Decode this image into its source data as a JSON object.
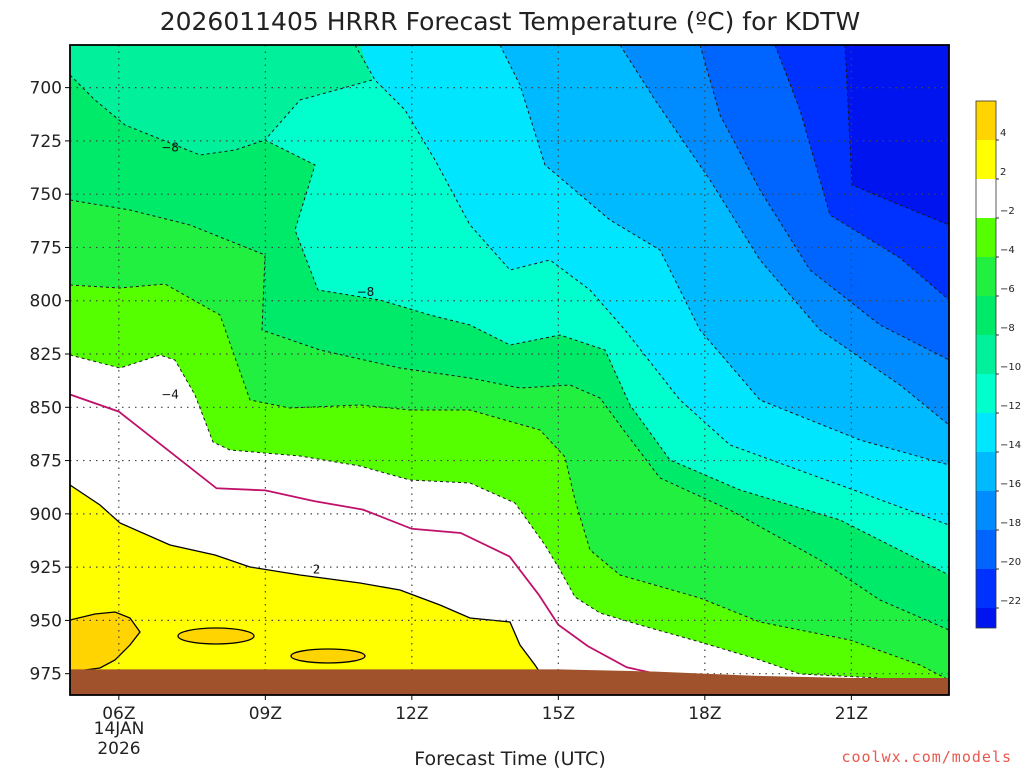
{
  "chart_data": {
    "type": "contour",
    "title": "2026011405 HRRR Forecast Temperature (ºC) for KDTW",
    "xlabel": "Forecast Time (UTC)",
    "ylabel": "",
    "x_ticks": [
      "06Z",
      "09Z",
      "12Z",
      "15Z",
      "18Z",
      "21Z"
    ],
    "x_date_line1": "14JAN",
    "x_date_line2": "2026",
    "y_ticks": [
      700,
      725,
      750,
      775,
      800,
      825,
      850,
      875,
      900,
      925,
      950,
      975
    ],
    "xlim_hours": [
      5,
      23
    ],
    "ylim_hpa": [
      680,
      985
    ],
    "grid": true,
    "colorbar": {
      "labels": [
        "4",
        "2",
        "−2",
        "−4",
        "−6",
        "−8",
        "−10",
        "−12",
        "−14",
        "−16",
        "−18",
        "−20",
        "−22"
      ],
      "colors": [
        "#ffd400",
        "#ffff00",
        "#ffffff",
        "#55ff00",
        "#22f040",
        "#00ea6a",
        "#00f09c",
        "#00ffcc",
        "#00e6ff",
        "#00baff",
        "#008cff",
        "#0064ff",
        "#0032ff",
        "#0014f0"
      ]
    },
    "contour_labels": [
      {
        "text": "−8",
        "hour": 7.05,
        "hpa": 728
      },
      {
        "text": "−8",
        "hour": 11.05,
        "hpa": 796
      },
      {
        "text": "−4",
        "hour": 7.05,
        "hpa": 844
      },
      {
        "text": "2",
        "hour": 10.05,
        "hpa": 926
      }
    ],
    "freezing_line": [
      [
        5,
        844
      ],
      [
        6,
        852
      ],
      [
        7,
        870
      ],
      [
        8,
        888
      ],
      [
        9,
        889
      ],
      [
        10,
        894
      ],
      [
        11,
        898
      ],
      [
        12,
        907
      ],
      [
        13,
        909
      ],
      [
        14,
        920
      ],
      [
        14.6,
        938
      ],
      [
        15,
        952
      ],
      [
        15.6,
        962
      ],
      [
        16.4,
        972
      ],
      [
        17,
        975
      ]
    ],
    "ground_level": [
      [
        5,
        973
      ],
      [
        15,
        973
      ],
      [
        17,
        974
      ],
      [
        19,
        976
      ],
      [
        21,
        977
      ],
      [
        23,
        977
      ]
    ]
  },
  "credit": "coolwx.com/models"
}
